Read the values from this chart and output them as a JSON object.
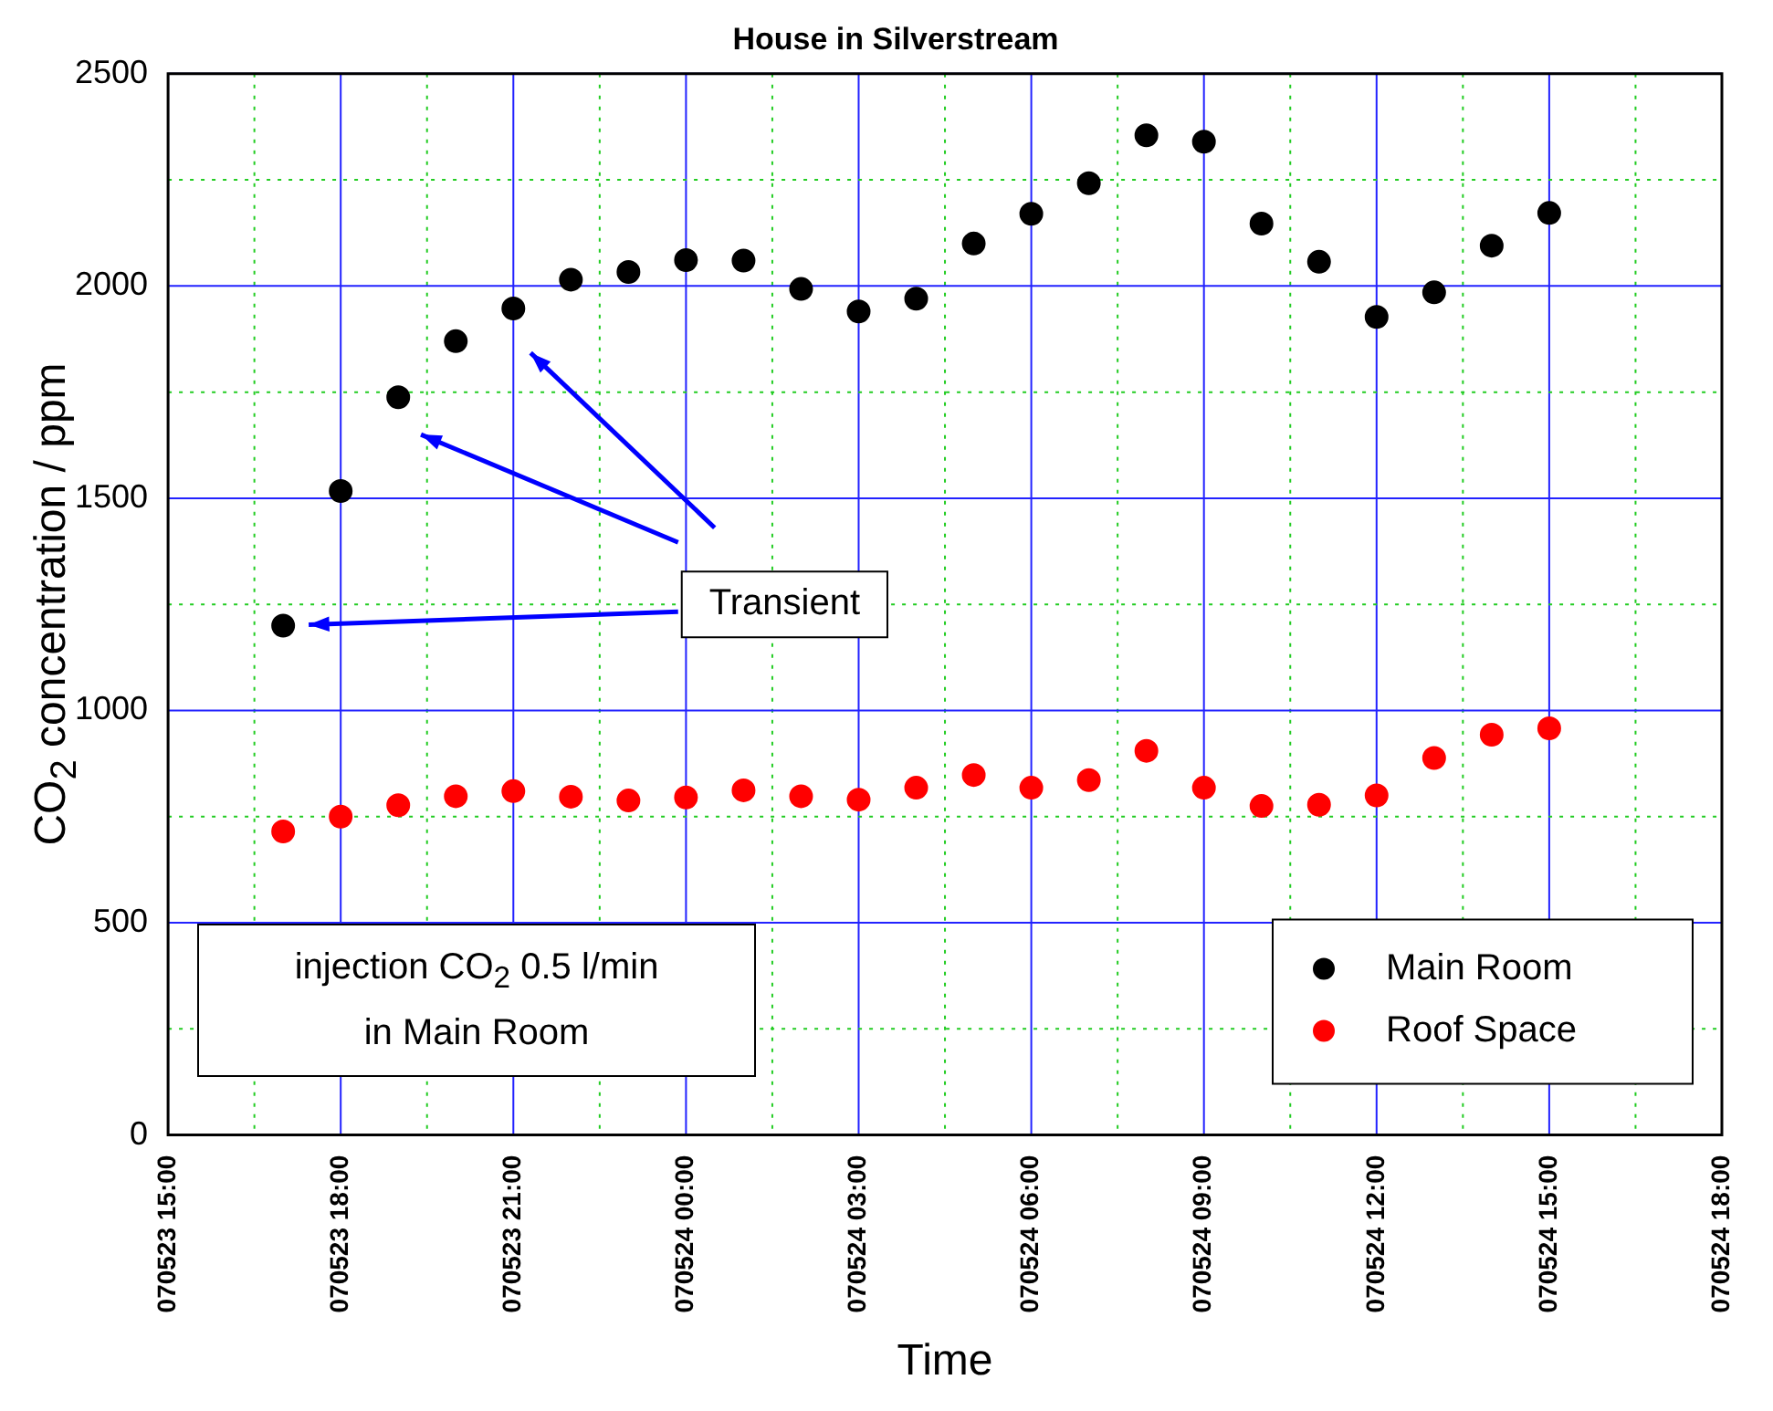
{
  "chart_data": {
    "type": "scatter",
    "title": "House in Silverstream",
    "xlabel": "Time",
    "ylabel": "CO$_{2}$ concentration / ppm",
    "categories": [
      "070523 15:00",
      null,
      null,
      "070523 18:00",
      null,
      null,
      "070523 21:00",
      null,
      null,
      "070524 00:00",
      null,
      null,
      "070524 03:00",
      null,
      null,
      "070524 06:00",
      null,
      null,
      "070524 09:00",
      null,
      null,
      "070524 12:00",
      null,
      null,
      "070524 15:00",
      null,
      null,
      "070524 18:00"
    ],
    "series": [
      {
        "name": "Main Room",
        "color": "#000000",
        "values": [
          null,
          null,
          1200,
          1517,
          1738,
          1870,
          1947,
          2015,
          2033,
          2061,
          2060,
          1993,
          1940,
          1970,
          2100,
          2170,
          2242,
          2355,
          2340,
          2147,
          2057,
          1927,
          1985,
          2095,
          2172,
          null,
          null,
          null
        ]
      },
      {
        "name": "Roof Space",
        "color": "#ff0000",
        "values": [
          null,
          null,
          715,
          750,
          777,
          798,
          810,
          797,
          788,
          795,
          812,
          798,
          790,
          818,
          848,
          818,
          836,
          905,
          818,
          775,
          778,
          800,
          888,
          943,
          958,
          null,
          null,
          null
        ]
      }
    ],
    "ylim": [
      0,
      2500
    ],
    "yticks": [
      0,
      {
        "value": 250,
        "label": null
      },
      500,
      {
        "value": 750,
        "label": null
      },
      1000,
      {
        "value": 1250,
        "label": null
      },
      1500,
      {
        "value": 1750,
        "label": null
      },
      2000,
      {
        "value": 2250,
        "label": null
      },
      2500
    ],
    "grid": true,
    "legend": "bottom right",
    "marker": "circle",
    "annotations": [
      "Transient",
      "injection CO$_{2}$ 0.5 l/min\nin Main Room"
    ]
  }
}
